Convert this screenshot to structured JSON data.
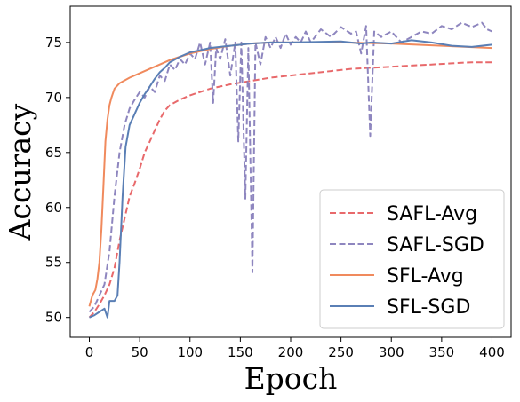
{
  "chart_data": {
    "type": "line",
    "title": "",
    "xlabel": "Epoch",
    "ylabel": "Accuracy",
    "xlim": [
      -19,
      419
    ],
    "ylim": [
      48.2,
      78.3
    ],
    "xticks": [
      0,
      50,
      100,
      150,
      200,
      250,
      300,
      350,
      400
    ],
    "yticks": [
      50,
      55,
      60,
      65,
      70,
      75
    ],
    "grid": false,
    "legend_position": "lower-right",
    "series": [
      {
        "name": "SAFL-Avg",
        "color": "#e8696b",
        "dash": "dashed",
        "points": [
          [
            0,
            50
          ],
          [
            5,
            50.5
          ],
          [
            10,
            51.2
          ],
          [
            15,
            52
          ],
          [
            20,
            53
          ],
          [
            25,
            54.5
          ],
          [
            30,
            57
          ],
          [
            35,
            59
          ],
          [
            40,
            61
          ],
          [
            45,
            62.2
          ],
          [
            50,
            63.5
          ],
          [
            55,
            65
          ],
          [
            60,
            66
          ],
          [
            65,
            67
          ],
          [
            70,
            68
          ],
          [
            75,
            68.8
          ],
          [
            80,
            69.3
          ],
          [
            90,
            69.8
          ],
          [
            100,
            70.2
          ],
          [
            120,
            70.8
          ],
          [
            140,
            71.2
          ],
          [
            160,
            71.5
          ],
          [
            180,
            71.8
          ],
          [
            200,
            72
          ],
          [
            220,
            72.2
          ],
          [
            240,
            72.4
          ],
          [
            260,
            72.6
          ],
          [
            280,
            72.7
          ],
          [
            300,
            72.8
          ],
          [
            320,
            72.9
          ],
          [
            340,
            73
          ],
          [
            360,
            73.1
          ],
          [
            380,
            73.2
          ],
          [
            400,
            73.2
          ]
        ]
      },
      {
        "name": "SAFL-SGD",
        "color": "#8e86bf",
        "dash": "dashed",
        "points": [
          [
            0,
            50.5
          ],
          [
            5,
            51
          ],
          [
            10,
            52
          ],
          [
            15,
            53
          ],
          [
            20,
            56
          ],
          [
            25,
            61
          ],
          [
            30,
            65
          ],
          [
            35,
            67.5
          ],
          [
            40,
            69
          ],
          [
            45,
            69.8
          ],
          [
            50,
            70.5
          ],
          [
            55,
            70
          ],
          [
            60,
            71
          ],
          [
            65,
            70.5
          ],
          [
            70,
            72
          ],
          [
            75,
            71.5
          ],
          [
            80,
            73
          ],
          [
            85,
            72.5
          ],
          [
            90,
            73.5
          ],
          [
            95,
            73
          ],
          [
            100,
            74
          ],
          [
            105,
            73.5
          ],
          [
            110,
            75
          ],
          [
            115,
            73
          ],
          [
            120,
            75
          ],
          [
            123,
            69.5
          ],
          [
            126,
            74.5
          ],
          [
            130,
            73.5
          ],
          [
            135,
            75.3
          ],
          [
            140,
            72
          ],
          [
            145,
            75
          ],
          [
            148,
            66
          ],
          [
            151,
            75
          ],
          [
            155,
            60.8
          ],
          [
            158,
            74.5
          ],
          [
            162,
            54.1
          ],
          [
            165,
            75
          ],
          [
            170,
            73
          ],
          [
            175,
            75.5
          ],
          [
            180,
            74.5
          ],
          [
            185,
            75.5
          ],
          [
            190,
            74.5
          ],
          [
            195,
            75.8
          ],
          [
            200,
            74.8
          ],
          [
            205,
            75.5
          ],
          [
            210,
            75
          ],
          [
            215,
            76
          ],
          [
            220,
            75
          ],
          [
            230,
            76.2
          ],
          [
            240,
            75.5
          ],
          [
            250,
            76.4
          ],
          [
            260,
            75.8
          ],
          [
            265,
            76
          ],
          [
            270,
            74
          ],
          [
            275,
            76.5
          ],
          [
            279,
            66.5
          ],
          [
            283,
            76
          ],
          [
            290,
            75.5
          ],
          [
            300,
            76
          ],
          [
            310,
            75
          ],
          [
            320,
            75.5
          ],
          [
            330,
            76
          ],
          [
            340,
            75.8
          ],
          [
            350,
            76.5
          ],
          [
            360,
            76.2
          ],
          [
            370,
            76.8
          ],
          [
            380,
            76.4
          ],
          [
            390,
            76.8
          ],
          [
            395,
            76.2
          ],
          [
            400,
            76
          ]
        ]
      },
      {
        "name": "SFL-Avg",
        "color": "#f08a5d",
        "dash": "solid",
        "points": [
          [
            0,
            51
          ],
          [
            3,
            52
          ],
          [
            6,
            52.5
          ],
          [
            8,
            53.5
          ],
          [
            10,
            55
          ],
          [
            12,
            58
          ],
          [
            14,
            62
          ],
          [
            16,
            66
          ],
          [
            18,
            68
          ],
          [
            20,
            69.3
          ],
          [
            22,
            70
          ],
          [
            25,
            70.8
          ],
          [
            30,
            71.3
          ],
          [
            40,
            71.8
          ],
          [
            50,
            72.2
          ],
          [
            60,
            72.6
          ],
          [
            70,
            73
          ],
          [
            80,
            73.4
          ],
          [
            90,
            73.7
          ],
          [
            100,
            74
          ],
          [
            120,
            74.4
          ],
          [
            140,
            74.7
          ],
          [
            160,
            74.9
          ],
          [
            180,
            75
          ],
          [
            200,
            75
          ],
          [
            250,
            75
          ],
          [
            300,
            74.9
          ],
          [
            350,
            74.7
          ],
          [
            400,
            74.5
          ]
        ]
      },
      {
        "name": "SFL-SGD",
        "color": "#5a7fb5",
        "dash": "solid",
        "points": [
          [
            0,
            50
          ],
          [
            5,
            50.2
          ],
          [
            10,
            50.5
          ],
          [
            15,
            50.8
          ],
          [
            18,
            50
          ],
          [
            20,
            51.5
          ],
          [
            25,
            51.5
          ],
          [
            28,
            52
          ],
          [
            30,
            55
          ],
          [
            33,
            61
          ],
          [
            36,
            65.5
          ],
          [
            40,
            67.5
          ],
          [
            45,
            68.5
          ],
          [
            50,
            69.5
          ],
          [
            55,
            70.3
          ],
          [
            60,
            71
          ],
          [
            65,
            71.7
          ],
          [
            70,
            72.3
          ],
          [
            75,
            72.7
          ],
          [
            80,
            73.2
          ],
          [
            90,
            73.7
          ],
          [
            100,
            74.1
          ],
          [
            110,
            74.3
          ],
          [
            120,
            74.5
          ],
          [
            140,
            74.7
          ],
          [
            160,
            74.9
          ],
          [
            180,
            75
          ],
          [
            200,
            75
          ],
          [
            250,
            75.1
          ],
          [
            270,
            74.9
          ],
          [
            280,
            75
          ],
          [
            300,
            74.9
          ],
          [
            320,
            75.2
          ],
          [
            340,
            75
          ],
          [
            360,
            74.7
          ],
          [
            380,
            74.6
          ],
          [
            400,
            74.8
          ]
        ]
      }
    ]
  }
}
